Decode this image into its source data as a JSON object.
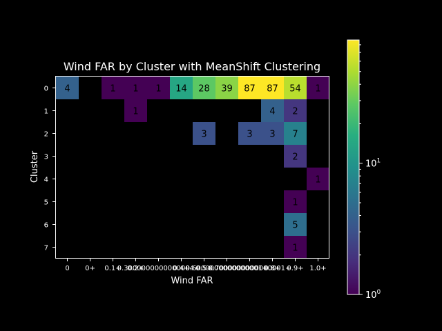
{
  "chart_data": {
    "type": "heatmap",
    "title": "Wind FAR by Cluster with MeanShift Clustering",
    "xlabel": "Wind FAR",
    "ylabel": "Cluster",
    "x_categories": [
      "0",
      "0+",
      "0.1+",
      "0.2+",
      "0.3000000000000004+",
      "0.4+",
      "0.5+",
      "0.6000000000000001+",
      "0.7000000000000001+",
      "0.8+",
      "0.9+",
      "1.0+"
    ],
    "y_categories": [
      "0",
      "1",
      "2",
      "3",
      "4",
      "5",
      "6",
      "7"
    ],
    "values": [
      [
        4,
        null,
        1,
        1,
        1,
        14,
        28,
        39,
        87,
        87,
        54,
        1
      ],
      [
        null,
        null,
        null,
        1,
        null,
        null,
        null,
        null,
        null,
        4,
        2,
        null
      ],
      [
        null,
        null,
        null,
        null,
        null,
        null,
        3,
        null,
        3,
        3,
        7,
        null
      ],
      [
        null,
        null,
        null,
        null,
        null,
        null,
        null,
        null,
        null,
        null,
        2,
        null
      ],
      [
        null,
        null,
        null,
        null,
        null,
        null,
        null,
        null,
        null,
        null,
        null,
        1
      ],
      [
        null,
        null,
        null,
        null,
        null,
        null,
        null,
        null,
        null,
        null,
        1,
        null
      ],
      [
        null,
        null,
        null,
        null,
        null,
        null,
        null,
        null,
        null,
        null,
        5,
        null
      ],
      [
        null,
        null,
        null,
        null,
        null,
        null,
        null,
        null,
        null,
        null,
        1,
        null
      ]
    ],
    "colormap": "viridis",
    "color_scale": "log",
    "color_range": [
      1,
      87
    ],
    "colorbar": {
      "ticks": [
        {
          "value": 1,
          "base": "10",
          "exp": "0"
        },
        {
          "value": 10,
          "base": "10",
          "exp": "1"
        }
      ]
    },
    "background": "#000000",
    "text_color": "#ffffff"
  }
}
